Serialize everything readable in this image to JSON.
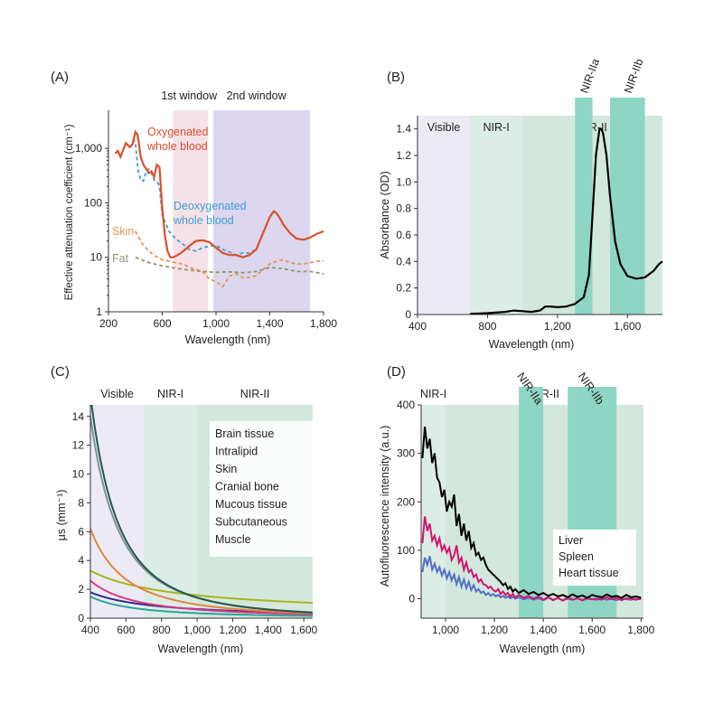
{
  "colors": {
    "visible": "#ecebf5",
    "nir1": "#dcece6",
    "nir2": "#d3e8dd",
    "nir2peak": "#8fd5c4",
    "win1": "#f6e1e8",
    "win2": "#dcd6ee",
    "blood_ox": "#d9502a",
    "blood_deoxy": "#3b9fd6",
    "skin": "#e8954f",
    "fat": "#8f9673"
  },
  "chart_data": [
    {
      "id": "A",
      "type": "line",
      "panel_label": "(A)",
      "xlabel": "Wavelength (nm)",
      "ylabel": "Effective attenuation coefficient (cm⁻¹)",
      "xlim": [
        200,
        1800
      ],
      "ylim": [
        1,
        5000
      ],
      "yscale": "log",
      "xticks": [
        200,
        600,
        1000,
        1400,
        1800
      ],
      "xticklabels": [
        "200",
        "600",
        "1,000",
        "1,400",
        "1,800"
      ],
      "yticks": [
        1,
        10,
        100,
        1000
      ],
      "yticklabels": [
        "1",
        "10",
        "100",
        "1,000"
      ],
      "bands": [
        {
          "x0": 680,
          "x1": 940,
          "color": "win1",
          "label": ""
        },
        {
          "x0": 980,
          "x1": 1700,
          "color": "win2",
          "label": ""
        }
      ],
      "band_labels": [
        {
          "text": "1st window",
          "x": 800
        },
        {
          "text": "2nd window",
          "x": 1300
        }
      ],
      "series": [
        {
          "name": "Oxygenated whole blood",
          "label_lines": [
            "Oxygenated",
            "whole blood"
          ],
          "color": "blood_ox",
          "dash": false,
          "x": [
            250,
            270,
            290,
            310,
            330,
            360,
            380,
            400,
            415,
            425,
            440,
            460,
            480,
            500,
            520,
            540,
            560,
            580,
            600,
            620,
            640,
            660,
            680,
            700,
            740,
            800,
            850,
            900,
            950,
            1000,
            1050,
            1100,
            1150,
            1200,
            1250,
            1300,
            1350,
            1400,
            1430,
            1450,
            1480,
            1500,
            1550,
            1600,
            1650,
            1700,
            1750,
            1800
          ],
          "y": [
            800,
            900,
            700,
            950,
            1250,
            1050,
            1200,
            2000,
            1800,
            1300,
            700,
            500,
            420,
            350,
            380,
            300,
            500,
            450,
            80,
            25,
            13,
            10,
            10,
            10.5,
            12,
            16,
            20,
            20.5,
            19,
            15,
            12,
            11,
            11,
            10,
            11,
            14,
            28,
            55,
            70,
            65,
            50,
            40,
            28,
            22,
            21,
            23,
            27,
            30
          ]
        },
        {
          "name": "Deoxygenated whole blood",
          "label_lines": [
            "Deoxygenated",
            "whole blood"
          ],
          "color": "blood_deoxy",
          "dash": true,
          "x": [
            380,
            400,
            420,
            440,
            460,
            480,
            500,
            520,
            540,
            560,
            580,
            600,
            650,
            700,
            760,
            800,
            850,
            900,
            950,
            1000,
            1050,
            1100,
            1150,
            1200,
            1250,
            1300,
            1350,
            1400,
            1430,
            1450,
            1480,
            1500,
            1550,
            1600,
            1650,
            1700,
            1750,
            1800
          ],
          "y": [
            1500,
            1300,
            400,
            260,
            250,
            380,
            420,
            350,
            260,
            250,
            200,
            60,
            30,
            22,
            17,
            14,
            13,
            15,
            16,
            16.5,
            14,
            12.5,
            11,
            12,
            12,
            14,
            28,
            55,
            70,
            65,
            50,
            40,
            28,
            22,
            21,
            23,
            27,
            30
          ]
        },
        {
          "name": "Skin",
          "label_lines": [
            "Skin"
          ],
          "color": "skin",
          "dash": true,
          "x": [
            400,
            450,
            500,
            550,
            600,
            650,
            700,
            760,
            800,
            850,
            900,
            950,
            1000,
            1050,
            1100,
            1150,
            1200,
            1250,
            1300,
            1350,
            1400,
            1450,
            1500,
            1550,
            1600,
            1650,
            1700,
            1750,
            1800
          ],
          "y": [
            30,
            18,
            13,
            10.5,
            9,
            8.5,
            8,
            7.5,
            6.5,
            6,
            5.5,
            4,
            3.6,
            2.9,
            4.5,
            5,
            4.2,
            4.3,
            4.6,
            6,
            7.5,
            8.5,
            9,
            8,
            7.5,
            7.5,
            8,
            8.5,
            8.5
          ]
        },
        {
          "name": "Fat",
          "label_lines": [
            "Fat"
          ],
          "color": "fat",
          "dash": true,
          "x": [
            400,
            500,
            600,
            700,
            800,
            900,
            1000,
            1100,
            1200,
            1300,
            1400,
            1500,
            1600,
            1700,
            1800
          ],
          "y": [
            10,
            8,
            7,
            6.3,
            5.8,
            5.5,
            5.3,
            5.4,
            5.2,
            5.5,
            6.5,
            6.2,
            5.5,
            5.5,
            5
          ]
        }
      ]
    },
    {
      "id": "B",
      "type": "line",
      "panel_label": "(B)",
      "xlabel": "Wavelength (nm)",
      "ylabel": "Absorbance (OD)",
      "xlim": [
        400,
        1800
      ],
      "ylim": [
        0,
        1.5
      ],
      "xticks": [
        400,
        800,
        1200,
        1600
      ],
      "xticklabels": [
        "400",
        "800",
        "1,200",
        "1,600"
      ],
      "yticks": [
        0,
        0.2,
        0.4,
        0.6,
        0.8,
        1.0,
        1.2,
        1.4
      ],
      "yticklabels": [
        "0",
        "0.2",
        "0.4",
        "0.6",
        "0.8",
        "1.0",
        "1.2",
        "1.4"
      ],
      "bands": [
        {
          "x0": 400,
          "x1": 700,
          "color": "visible",
          "label": "Visible"
        },
        {
          "x0": 700,
          "x1": 1000,
          "color": "nir1",
          "label": "NIR-I"
        },
        {
          "x0": 1000,
          "x1": 1800,
          "color": "nir2",
          "label": "NIR-II"
        },
        {
          "x0": 1300,
          "x1": 1400,
          "color": "nir2peak",
          "label": "NIR-IIa",
          "rotated": true
        },
        {
          "x0": 1500,
          "x1": 1700,
          "color": "nir2peak",
          "label": "NIR-IIb",
          "rotated": true
        }
      ],
      "series": [
        {
          "name": "Absorbance",
          "color": "#000000",
          "dash": false,
          "x": [
            700,
            800,
            900,
            950,
            1000,
            1050,
            1100,
            1130,
            1160,
            1200,
            1250,
            1300,
            1350,
            1380,
            1400,
            1420,
            1440,
            1450,
            1460,
            1480,
            1500,
            1530,
            1560,
            1600,
            1650,
            1700,
            1750,
            1780,
            1800
          ],
          "y": [
            0.005,
            0.01,
            0.02,
            0.03,
            0.025,
            0.02,
            0.03,
            0.06,
            0.06,
            0.055,
            0.06,
            0.08,
            0.13,
            0.3,
            0.75,
            1.2,
            1.4,
            1.4,
            1.37,
            1.2,
            0.9,
            0.55,
            0.38,
            0.29,
            0.27,
            0.28,
            0.33,
            0.38,
            0.4
          ]
        }
      ]
    },
    {
      "id": "C",
      "type": "line",
      "panel_label": "(C)",
      "xlabel": "Wavelength (nm)",
      "ylabel": "μs (mm⁻¹)",
      "xlim": [
        400,
        1650
      ],
      "ylim": [
        0,
        14.8
      ],
      "xticks": [
        400,
        600,
        800,
        1000,
        1200,
        1400,
        1600
      ],
      "xticklabels": [
        "400",
        "600",
        "800",
        "1,000",
        "1,200",
        "1,400",
        "1,600"
      ],
      "yticks": [
        0,
        2,
        4,
        6,
        8,
        10,
        12,
        14
      ],
      "yticklabels": [
        "0",
        "2",
        "4",
        "6",
        "8",
        "10",
        "12",
        "14"
      ],
      "bands": [
        {
          "x0": 400,
          "x1": 700,
          "color": "visible",
          "label": "Visible"
        },
        {
          "x0": 700,
          "x1": 1000,
          "color": "nir1",
          "label": "NIR-I"
        },
        {
          "x0": 1000,
          "x1": 1650,
          "color": "nir2",
          "label": "NIR-II"
        }
      ],
      "series": [
        {
          "name": "Brain tissue",
          "color": "#24584a",
          "a": 15.5,
          "b": 2.6
        },
        {
          "name": "Intralipid",
          "color": "#7d9394",
          "a": 14.0,
          "b": 2.5
        },
        {
          "name": "Skin",
          "color": "#e4843e",
          "a": 6.2,
          "b": 2.05
        },
        {
          "name": "Cranial bone",
          "color": "#a9b41c",
          "a": 3.3,
          "b": 0.8
        },
        {
          "name": "Mucous tissue",
          "color": "#d8388d",
          "a": 2.6,
          "b": 1.6
        },
        {
          "name": "Subcutaneous",
          "color": "#2b2d86",
          "a": 1.8,
          "b": 1.15
        },
        {
          "name": "Muscle",
          "color": "#2fa29b",
          "a": 1.5,
          "b": 1.6
        }
      ]
    },
    {
      "id": "D",
      "type": "line",
      "panel_label": "(D)",
      "xlabel": "Wavelength (nm)",
      "ylabel": "Autofluorescence intensity (a.u.)",
      "xlim": [
        900,
        1810
      ],
      "ylim": [
        -40,
        400
      ],
      "xticks": [
        1000,
        1200,
        1400,
        1600,
        1800
      ],
      "xticklabels": [
        "1,000",
        "1,200",
        "1,400",
        "1,600",
        "1,800"
      ],
      "yticks": [
        0,
        100,
        200,
        300,
        400
      ],
      "yticklabels": [
        "0",
        "100",
        "200",
        "300",
        "400"
      ],
      "bands": [
        {
          "x0": 900,
          "x1": 1000,
          "color": "nir1",
          "label": "NIR-I"
        },
        {
          "x0": 1000,
          "x1": 1810,
          "color": "nir2",
          "label": "NIR-II"
        },
        {
          "x0": 1300,
          "x1": 1400,
          "color": "nir2peak",
          "label": "NIR-IIa",
          "rotated": true
        },
        {
          "x0": 1500,
          "x1": 1700,
          "color": "nir2peak",
          "label": "NIR-IIb",
          "rotated": true
        }
      ],
      "series": [
        {
          "name": "Liver",
          "color": "#000000",
          "x": [
            905,
            915,
            925,
            935,
            945,
            955,
            965,
            975,
            985,
            995,
            1005,
            1015,
            1025,
            1035,
            1045,
            1055,
            1065,
            1075,
            1085,
            1095,
            1105,
            1115,
            1125,
            1135,
            1145,
            1155,
            1165,
            1175,
            1185,
            1195,
            1205,
            1215,
            1225,
            1235,
            1245,
            1255,
            1265,
            1275,
            1285,
            1300,
            1320,
            1340,
            1360,
            1380,
            1400,
            1420,
            1440,
            1460,
            1480,
            1500,
            1520,
            1540,
            1560,
            1580,
            1600,
            1620,
            1640,
            1660,
            1680,
            1700,
            1720,
            1740,
            1760,
            1780,
            1800
          ],
          "y": [
            290,
            355,
            310,
            330,
            280,
            300,
            250,
            240,
            210,
            225,
            180,
            200,
            190,
            215,
            150,
            175,
            130,
            155,
            120,
            140,
            105,
            115,
            90,
            95,
            80,
            85,
            70,
            60,
            55,
            50,
            45,
            40,
            35,
            28,
            32,
            20,
            25,
            15,
            20,
            12,
            18,
            10,
            14,
            8,
            12,
            6,
            10,
            5,
            8,
            3,
            9,
            4,
            7,
            2,
            8,
            5,
            3,
            9,
            4,
            6,
            2,
            8,
            3,
            5,
            2
          ]
        },
        {
          "name": "Spleen",
          "color": "#d4166d",
          "x": [
            905,
            915,
            925,
            935,
            945,
            955,
            965,
            975,
            985,
            995,
            1005,
            1015,
            1025,
            1035,
            1045,
            1055,
            1065,
            1075,
            1085,
            1095,
            1105,
            1115,
            1125,
            1135,
            1145,
            1155,
            1165,
            1175,
            1185,
            1195,
            1205,
            1215,
            1225,
            1235,
            1245,
            1255,
            1265,
            1275,
            1285,
            1300,
            1320,
            1340,
            1360,
            1380,
            1400,
            1420,
            1440,
            1460,
            1480,
            1500,
            1520,
            1540,
            1560,
            1580,
            1600,
            1620,
            1640,
            1660,
            1680,
            1700,
            1720,
            1740,
            1760,
            1780,
            1800
          ],
          "y": [
            115,
            170,
            140,
            155,
            120,
            130,
            110,
            125,
            100,
            110,
            95,
            105,
            80,
            90,
            110,
            75,
            85,
            60,
            75,
            55,
            60,
            45,
            50,
            35,
            40,
            30,
            28,
            22,
            25,
            18,
            15,
            20,
            10,
            15,
            8,
            12,
            5,
            10,
            3,
            8,
            2,
            6,
            0,
            5,
            -2,
            4,
            -3,
            2,
            -4,
            3,
            -2,
            1,
            -3,
            2,
            -1,
            0,
            -2,
            3,
            -1,
            2,
            -3,
            1,
            0,
            -2,
            1
          ]
        },
        {
          "name": "Heart tissue",
          "color": "#5470c6",
          "x": [
            905,
            915,
            925,
            935,
            945,
            955,
            965,
            975,
            985,
            995,
            1005,
            1015,
            1025,
            1035,
            1045,
            1055,
            1065,
            1075,
            1085,
            1095,
            1105,
            1115,
            1125,
            1135,
            1145,
            1155,
            1165,
            1175,
            1185,
            1195,
            1205,
            1215,
            1225,
            1235,
            1245,
            1255,
            1265,
            1275,
            1285,
            1300,
            1320,
            1340,
            1360,
            1380,
            1400,
            1420,
            1440,
            1460,
            1480,
            1500,
            1520,
            1540,
            1560,
            1580,
            1600,
            1620,
            1640,
            1660,
            1680,
            1700,
            1720,
            1740,
            1760,
            1780,
            1800
          ],
          "y": [
            55,
            85,
            70,
            88,
            60,
            72,
            55,
            65,
            48,
            60,
            42,
            55,
            38,
            50,
            30,
            45,
            25,
            40,
            22,
            35,
            18,
            28,
            15,
            20,
            12,
            15,
            8,
            12,
            6,
            10,
            5,
            8,
            3,
            6,
            2,
            5,
            1,
            4,
            0,
            3,
            -1,
            2,
            -2,
            1,
            -3,
            2,
            -2,
            1,
            -3,
            0,
            -2,
            1,
            -3,
            0,
            -1,
            -2,
            1,
            -2,
            0,
            -3,
            1,
            -1,
            -2,
            0,
            -1
          ]
        }
      ]
    }
  ]
}
